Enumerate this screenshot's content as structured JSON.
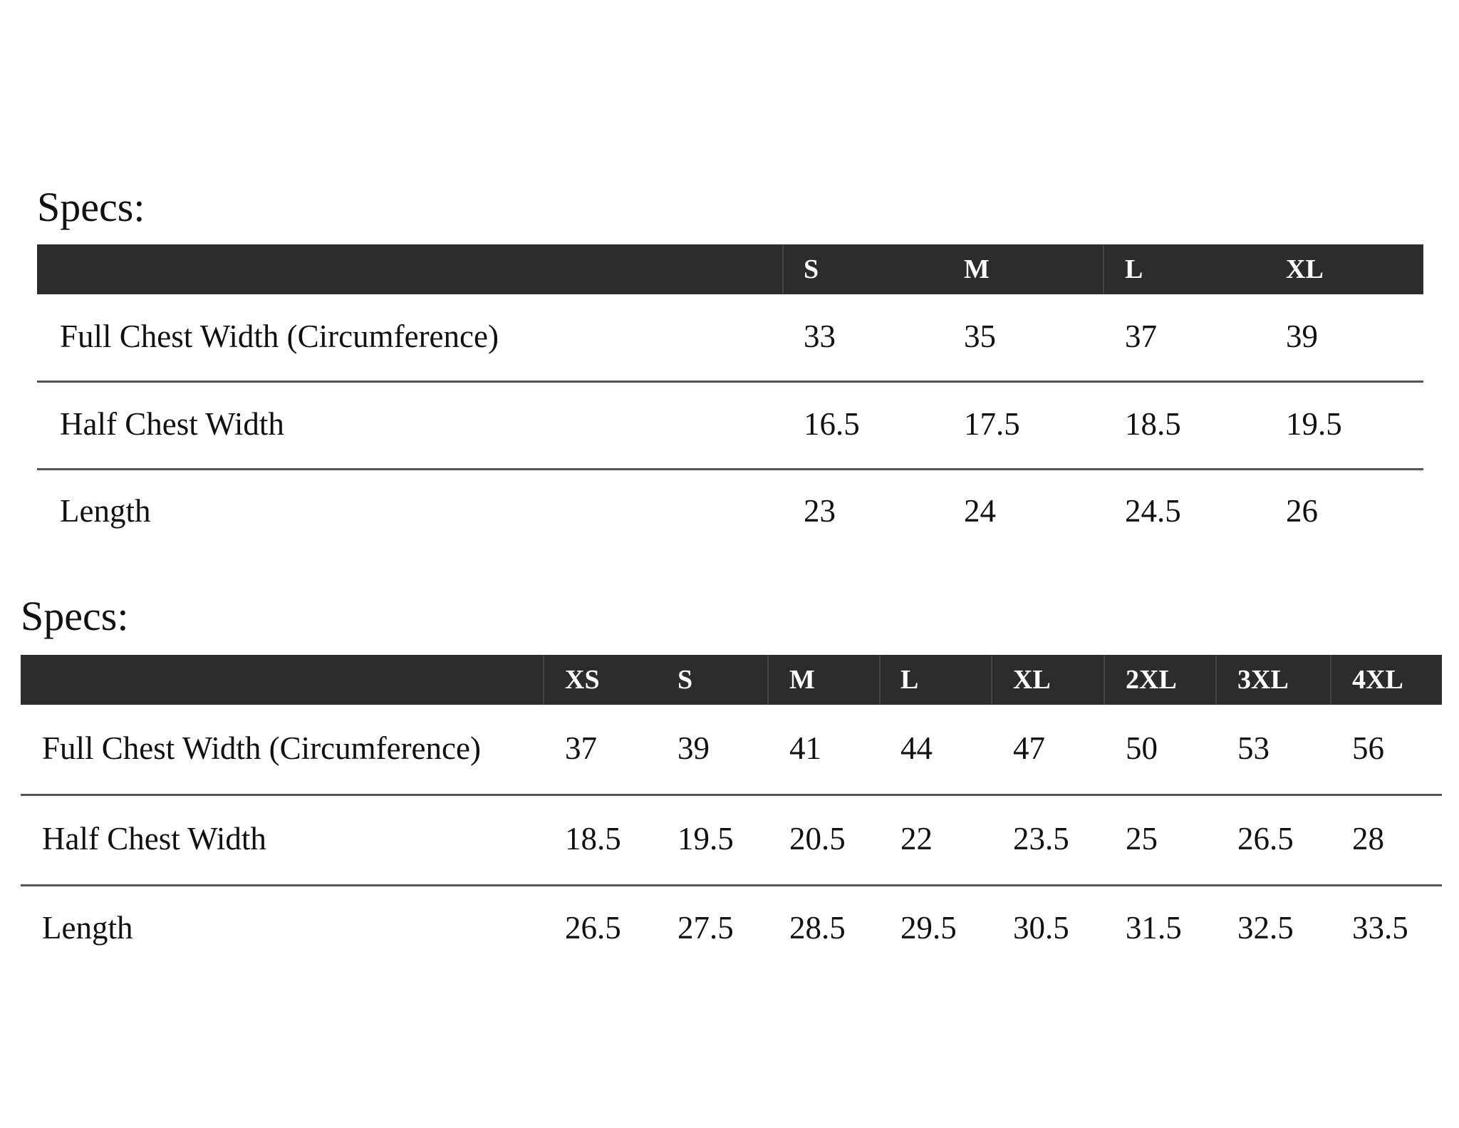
{
  "tables": [
    {
      "title": "Specs:",
      "columns": [
        "S",
        "M",
        "L",
        "XL"
      ],
      "rows": [
        {
          "label": "Full Chest Width (Circumference)",
          "values": [
            33,
            35,
            37,
            39
          ]
        },
        {
          "label": "Half Chest Width",
          "values": [
            16.5,
            17.5,
            18.5,
            19.5
          ]
        },
        {
          "label": "Length",
          "values": [
            23,
            24,
            24.5,
            26
          ]
        }
      ]
    },
    {
      "title": "Specs:",
      "columns": [
        "XS",
        "S",
        "M",
        "L",
        "XL",
        "2XL",
        "3XL",
        "4XL"
      ],
      "rows": [
        {
          "label": "Full Chest Width (Circumference)",
          "values": [
            37,
            39,
            41,
            44,
            47,
            50,
            53,
            56
          ]
        },
        {
          "label": "Half Chest Width",
          "values": [
            18.5,
            19.5,
            20.5,
            22,
            23.5,
            25,
            26.5,
            28
          ]
        },
        {
          "label": "Length",
          "values": [
            26.5,
            27.5,
            28.5,
            29.5,
            30.5,
            31.5,
            32.5,
            33.5
          ]
        }
      ]
    }
  ]
}
